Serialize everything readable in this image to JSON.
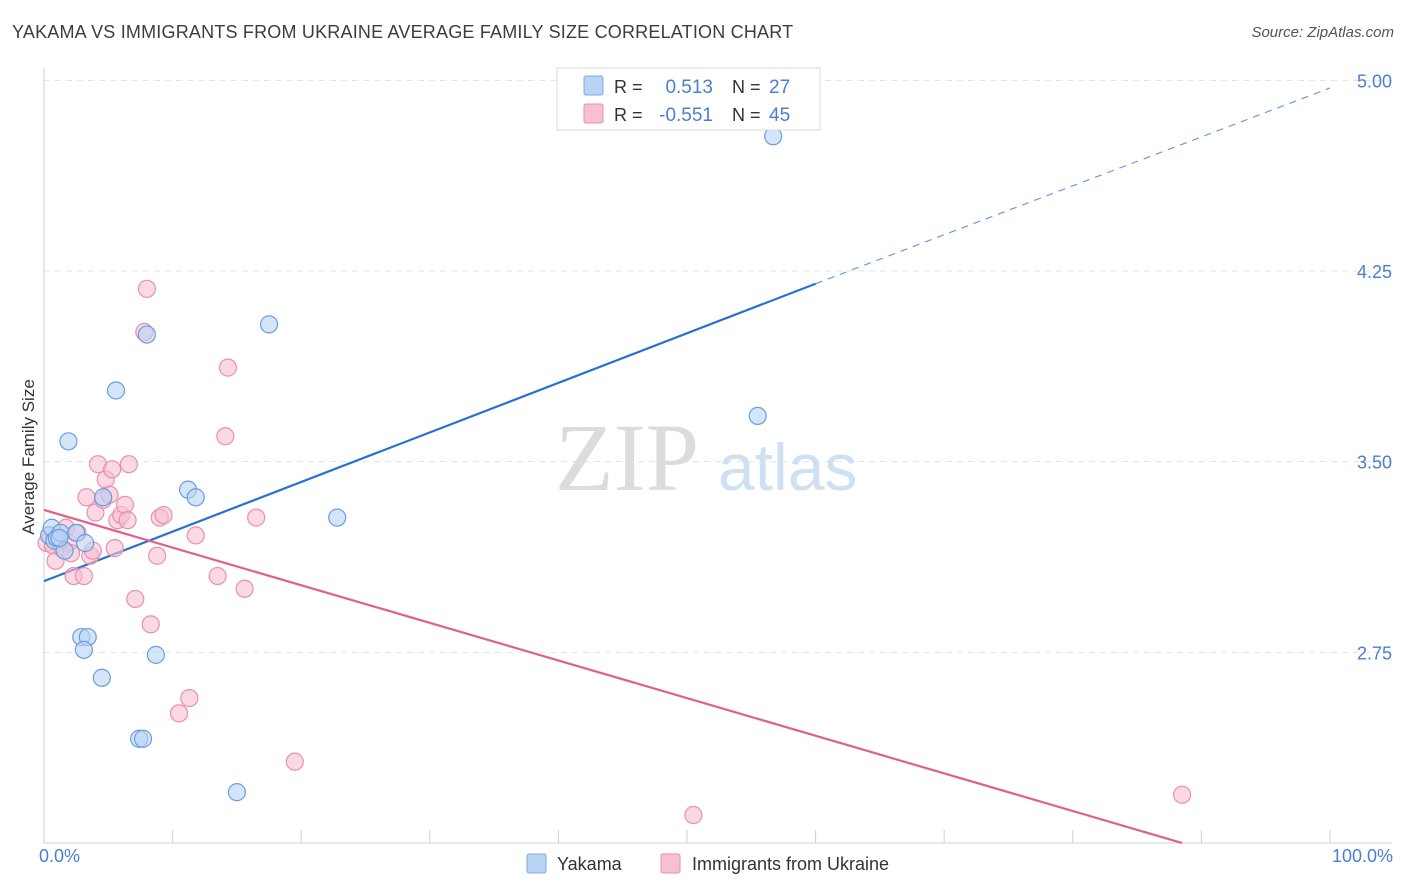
{
  "header": {
    "title": "YAKAMA VS IMMIGRANTS FROM UKRAINE AVERAGE FAMILY SIZE CORRELATION CHART",
    "source": "Source: ZipAtlas.com"
  },
  "watermark": {
    "zip": "ZIP",
    "atlas": "atlas"
  },
  "legend_box": {
    "rows": [
      {
        "r_label": "R =",
        "r_value": "0.513",
        "n_label": "N =",
        "n_value": "27"
      },
      {
        "r_label": "R =",
        "r_value": "-0.551",
        "n_label": "N =",
        "n_value": "45"
      }
    ]
  },
  "colors": {
    "blue": "#2970d4",
    "blue_fill": "#b9d3f5",
    "pink": "#e0608c",
    "pink_fill": "#f7c0d2",
    "value_text": "#4a7fd0",
    "grid": "#e3e3e3"
  },
  "chart_data": {
    "type": "scatter",
    "title": "YAKAMA VS IMMIGRANTS FROM UKRAINE AVERAGE FAMILY SIZE CORRELATION CHART",
    "xlabel": "",
    "ylabel": "Average Family Size",
    "xlim": [
      0,
      100
    ],
    "ylim": [
      2.0,
      5.08
    ],
    "x_tick_labels": [
      "0.0%",
      "100.0%"
    ],
    "y_ticks": [
      2.75,
      3.5,
      4.25,
      5.0
    ],
    "y_tick_labels": [
      "2.75",
      "3.50",
      "4.25",
      "5.00"
    ],
    "legend": [
      "Yakama",
      "Immigrants from Ukraine"
    ],
    "series": [
      {
        "name": "Yakama",
        "color": "#2970d4",
        "r": 0.513,
        "n": 27,
        "trend": {
          "x0": 0,
          "y0": 3.03,
          "x1": 60,
          "y1": 4.2,
          "dash_to_x": 100,
          "dash_to_y": 4.97
        },
        "points": [
          [
            0.4,
            3.21
          ],
          [
            0.6,
            3.24
          ],
          [
            0.8,
            3.19
          ],
          [
            1.0,
            3.2
          ],
          [
            1.3,
            3.22
          ],
          [
            1.6,
            3.15
          ],
          [
            1.9,
            3.58
          ],
          [
            2.5,
            3.22
          ],
          [
            3.2,
            3.18
          ],
          [
            2.9,
            2.81
          ],
          [
            3.4,
            2.81
          ],
          [
            3.1,
            2.76
          ],
          [
            4.5,
            2.65
          ],
          [
            4.6,
            3.36
          ],
          [
            5.6,
            3.78
          ],
          [
            7.4,
            2.41
          ],
          [
            7.7,
            2.41
          ],
          [
            8.0,
            4.0
          ],
          [
            8.7,
            2.74
          ],
          [
            11.2,
            3.39
          ],
          [
            11.8,
            3.36
          ],
          [
            15.0,
            2.2
          ],
          [
            17.5,
            4.04
          ],
          [
            22.8,
            3.28
          ],
          [
            55.5,
            3.68
          ],
          [
            56.7,
            4.78
          ],
          [
            1.2,
            3.2
          ]
        ]
      },
      {
        "name": "Immigrants from Ukraine",
        "color": "#e0608c",
        "r": -0.551,
        "n": 45,
        "trend": {
          "x0": 0,
          "y0": 3.31,
          "x1": 88.5,
          "y1": 2.0
        },
        "points": [
          [
            0.2,
            3.18
          ],
          [
            0.4,
            3.21
          ],
          [
            0.7,
            3.17
          ],
          [
            0.9,
            3.11
          ],
          [
            1.1,
            3.19
          ],
          [
            1.4,
            3.16
          ],
          [
            1.7,
            3.24
          ],
          [
            1.9,
            3.18
          ],
          [
            2.1,
            3.14
          ],
          [
            2.3,
            3.05
          ],
          [
            2.6,
            3.22
          ],
          [
            3.1,
            3.05
          ],
          [
            3.3,
            3.36
          ],
          [
            3.6,
            3.13
          ],
          [
            4.0,
            3.3
          ],
          [
            4.2,
            3.49
          ],
          [
            4.6,
            3.35
          ],
          [
            4.8,
            3.43
          ],
          [
            5.1,
            3.37
          ],
          [
            5.3,
            3.47
          ],
          [
            5.5,
            3.16
          ],
          [
            5.7,
            3.27
          ],
          [
            6.0,
            3.29
          ],
          [
            6.3,
            3.33
          ],
          [
            6.5,
            3.27
          ],
          [
            6.6,
            3.49
          ],
          [
            7.1,
            2.96
          ],
          [
            7.8,
            4.01
          ],
          [
            8.0,
            4.18
          ],
          [
            8.3,
            2.86
          ],
          [
            8.8,
            3.13
          ],
          [
            9.0,
            3.28
          ],
          [
            9.3,
            3.29
          ],
          [
            10.5,
            2.51
          ],
          [
            11.3,
            2.57
          ],
          [
            11.8,
            3.21
          ],
          [
            13.5,
            3.05
          ],
          [
            14.1,
            3.6
          ],
          [
            14.3,
            3.87
          ],
          [
            15.6,
            3.0
          ],
          [
            16.5,
            3.28
          ],
          [
            19.5,
            2.32
          ],
          [
            50.5,
            2.11
          ],
          [
            88.5,
            2.19
          ],
          [
            3.8,
            3.15
          ]
        ]
      }
    ]
  }
}
